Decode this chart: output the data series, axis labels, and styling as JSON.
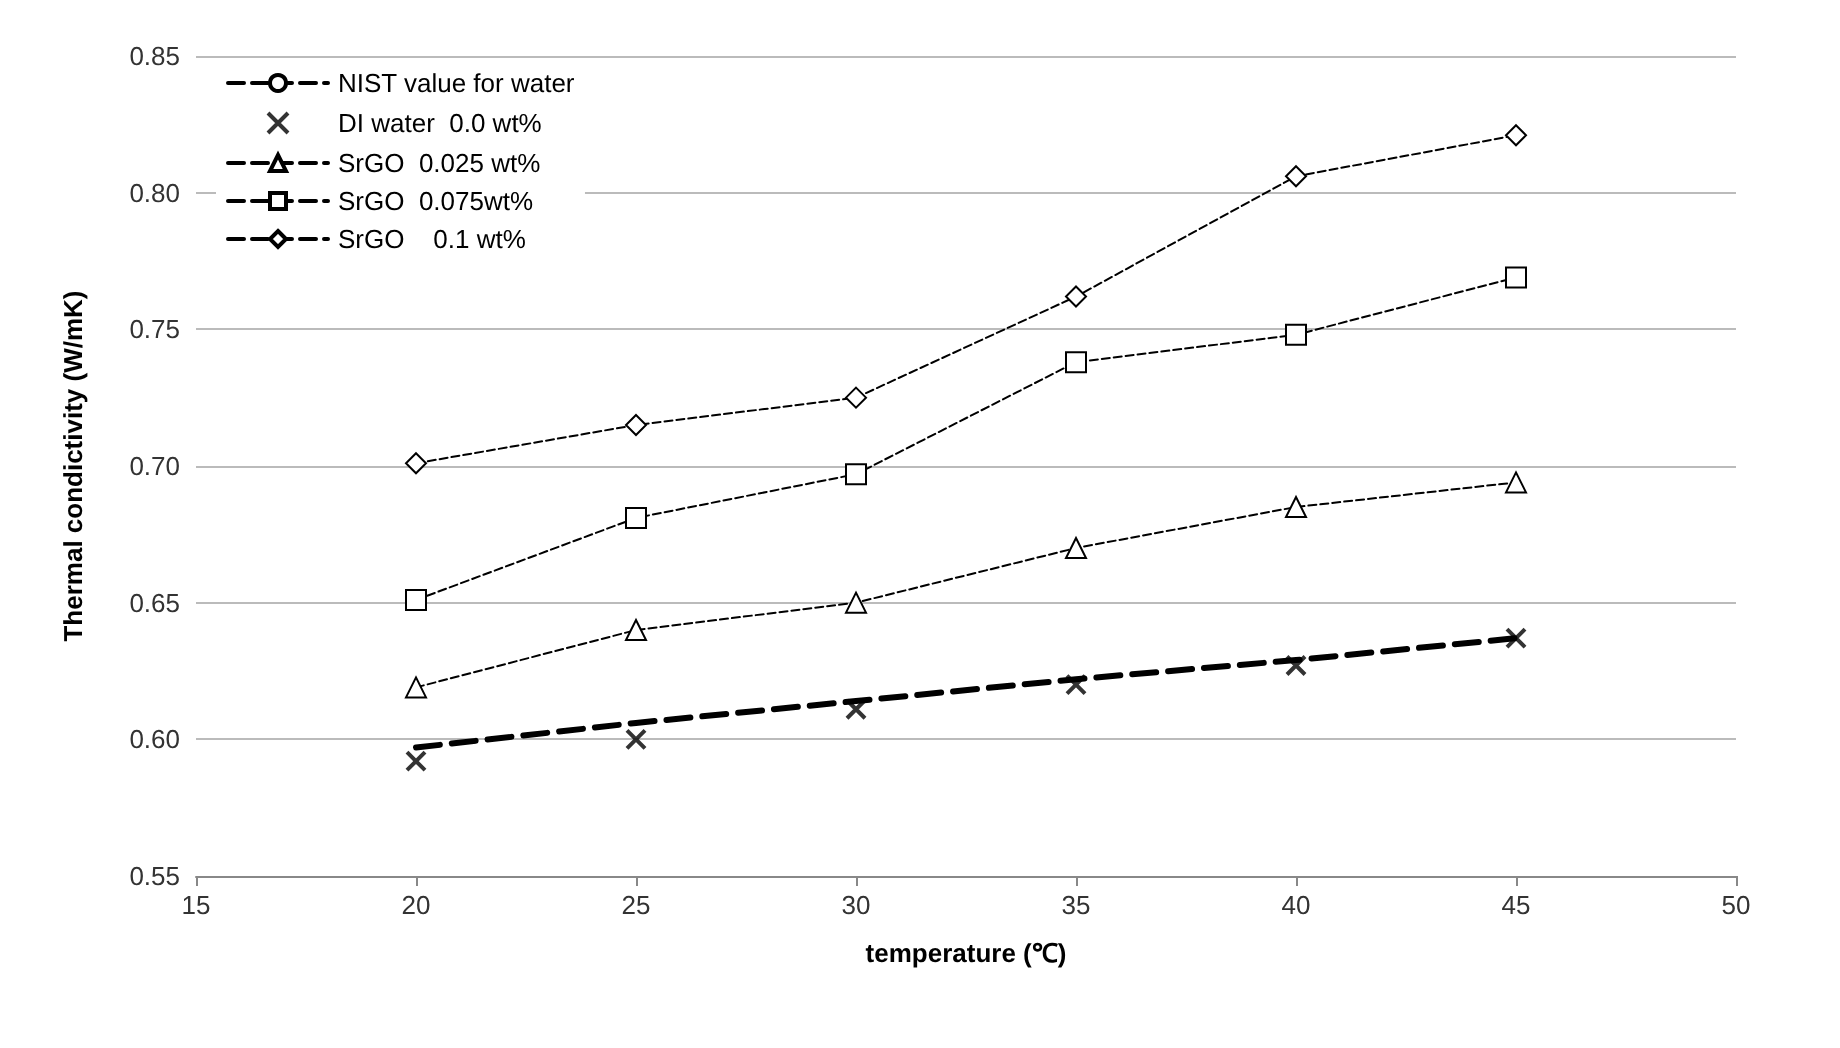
{
  "chart_data": {
    "type": "line",
    "xlabel": "temperature (℃)",
    "ylabel": "Thermal condictivity (W/mK)",
    "x": [
      20,
      25,
      30,
      35,
      40,
      45
    ],
    "series": [
      {
        "name": "NIST value for water",
        "color": "#000000",
        "values": [
          0.597,
          0.606,
          0.614,
          0.622,
          0.629,
          0.637
        ],
        "marker": "none",
        "line_style": "dashed"
      },
      {
        "name": "DI water  0.0 wt%",
        "type": "scatter",
        "color": "#000000",
        "values": [
          0.592,
          0.6,
          0.611,
          0.62,
          0.627,
          0.637
        ],
        "marker": "cross"
      },
      {
        "name": "SrGO  0.025 wt%",
        "color": "#000000",
        "values": [
          0.619,
          0.64,
          0.65,
          0.67,
          0.685,
          0.694
        ],
        "marker": "triangle",
        "line_style": "dashed"
      },
      {
        "name": "SrGO  0.075wt%",
        "color": "#000000",
        "values": [
          0.651,
          0.681,
          0.697,
          0.738,
          0.748,
          0.769
        ],
        "marker": "square",
        "line_style": "dashed"
      },
      {
        "name": "SrGO    0.1 wt%",
        "color": "#000000",
        "values": [
          0.701,
          0.715,
          0.725,
          0.762,
          0.806,
          0.821
        ],
        "marker": "diamond",
        "line_style": "dashed"
      }
    ],
    "xlim": [
      15,
      50
    ],
    "xticks": [
      15,
      20,
      25,
      30,
      35,
      40,
      45,
      50
    ],
    "ylim": [
      0.55,
      0.85
    ],
    "yticks": [
      {
        "value": 0.55,
        "label": "0.55"
      },
      {
        "value": 0.6,
        "label": "0.60"
      },
      {
        "value": 0.65,
        "label": "0.65"
      },
      {
        "value": 0.7,
        "label": "0.70"
      },
      {
        "value": 0.75,
        "label": "0.75"
      },
      {
        "value": 0.8,
        "label": "0.80"
      },
      {
        "value": 0.85,
        "label": "0.85"
      }
    ],
    "grid": "y",
    "legend": "top left"
  }
}
